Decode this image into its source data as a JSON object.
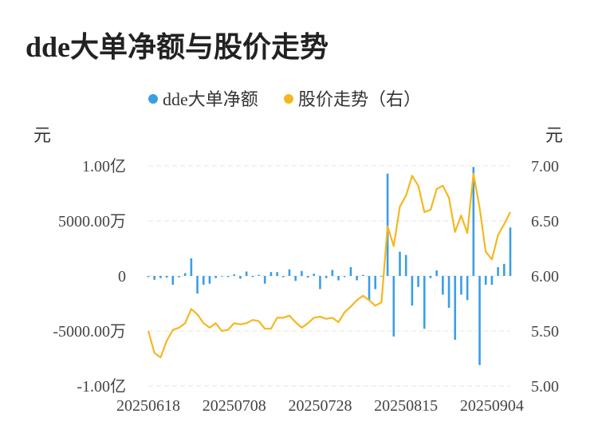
{
  "title": "dde大单净额与股价走势",
  "colors": {
    "bar": "#3a9ee6",
    "line": "#f5b720",
    "grid": "#e6e6e6"
  },
  "chart_data": {
    "type": "bar+line",
    "title": "dde大单净额与股价走势",
    "legend": {
      "position": "top-center",
      "items": [
        "dde大单净额",
        "股价走势（右）"
      ]
    },
    "y_left": {
      "unit": "元",
      "ticks": [
        "1.00亿",
        "5000.00万",
        "0",
        "-5000.00万",
        "-1.00亿"
      ],
      "range": [
        -100000000,
        100000000
      ]
    },
    "y_right": {
      "unit": "元",
      "ticks": [
        "7.00",
        "6.50",
        "6.00",
        "5.50",
        "5.00"
      ],
      "range": [
        5.0,
        7.0
      ]
    },
    "x_ticks": [
      "20250618",
      "20250708",
      "20250728",
      "20250815",
      "20250904"
    ],
    "x_tick_indices": [
      0,
      14,
      28,
      42,
      56
    ],
    "grid": true,
    "series": [
      {
        "name": "dde大单净额",
        "kind": "bar",
        "values": [
          -1000000,
          -3500000,
          -2000000,
          -1500000,
          -8000000,
          -1200000,
          2500000,
          16000000,
          -16000000,
          -8000000,
          -7000000,
          -2000000,
          0,
          -1000000,
          1500000,
          -2500000,
          4000000,
          -1000000,
          1000000,
          -7000000,
          3500000,
          3500000,
          -1200000,
          6000000,
          -4500000,
          4500000,
          -1500000,
          2000000,
          -12000000,
          -2000000,
          5500000,
          -4000000,
          -1000000,
          8000000,
          -4000000,
          1000000,
          -22000000,
          -12000000,
          0,
          93000000,
          -55000000,
          22000000,
          19000000,
          -27000000,
          -10000000,
          -48000000,
          -2000000,
          5000000,
          -17000000,
          -29000000,
          -58000000,
          -17000000,
          -22000000,
          99000000,
          -81000000,
          -8000000,
          -8000000,
          8000000,
          11000000,
          44000000
        ]
      },
      {
        "name": "股价走势（右）",
        "kind": "line",
        "values": [
          5.5,
          5.3,
          5.26,
          5.41,
          5.51,
          5.53,
          5.57,
          5.7,
          5.65,
          5.57,
          5.53,
          5.57,
          5.5,
          5.51,
          5.57,
          5.56,
          5.57,
          5.6,
          5.59,
          5.52,
          5.52,
          5.62,
          5.62,
          5.64,
          5.58,
          5.53,
          5.57,
          5.62,
          5.63,
          5.61,
          5.62,
          5.58,
          5.67,
          5.72,
          5.78,
          5.82,
          5.78,
          5.73,
          5.76,
          6.45,
          6.27,
          6.63,
          6.73,
          6.91,
          6.82,
          6.58,
          6.6,
          6.79,
          6.82,
          6.71,
          6.4,
          6.55,
          6.39,
          6.93,
          6.62,
          6.22,
          6.15,
          6.37,
          6.47,
          6.58
        ]
      }
    ]
  }
}
